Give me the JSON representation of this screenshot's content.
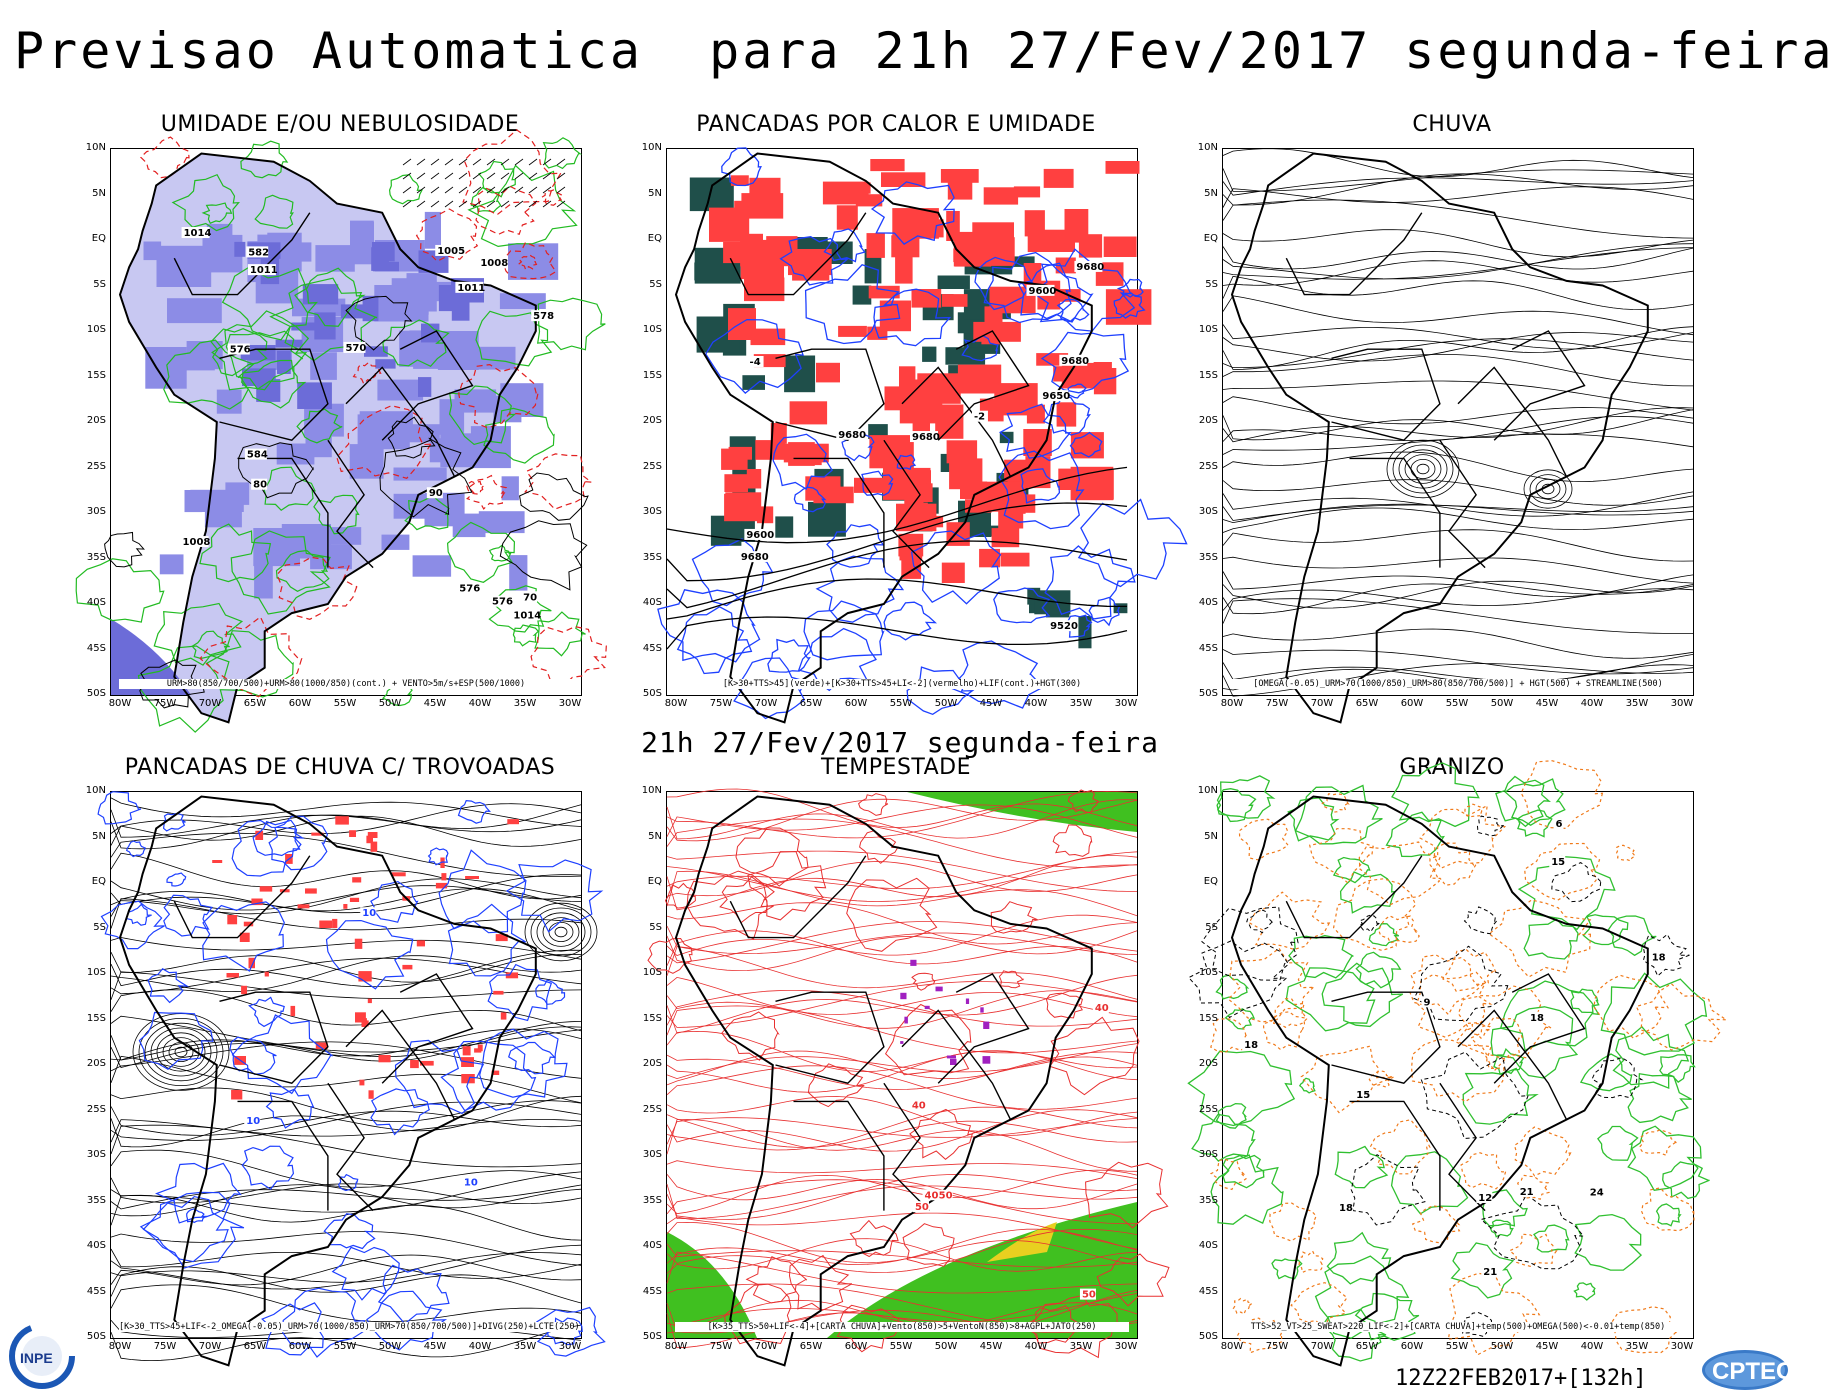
{
  "header": {
    "title": "Previsao Automatica  para 21h 27/Fev/2017 segunda-feira",
    "mid_title": "21h 27/Fev/2017 segunda-feira",
    "run_code": "12Z22FEB2017+[132h]"
  },
  "axes": {
    "lat_labels": [
      "10N",
      "5N",
      "EQ",
      "5S",
      "10S",
      "15S",
      "20S",
      "25S",
      "30S",
      "35S",
      "40S",
      "45S",
      "50S"
    ],
    "lon_labels": [
      "80W",
      "75W",
      "70W",
      "65W",
      "60W",
      "55W",
      "50W",
      "45W",
      "40W",
      "35W",
      "30W"
    ]
  },
  "panels": [
    {
      "id": "umidade",
      "title": "UMIDADE E/OU NEBULOSIDADE",
      "caption": "URM>80(850/700/500)+URM>80(1000/850)(cont.) + VENTO>5m/s+ESP(500/1000)",
      "style": "humidity",
      "contour_labels": [
        "1011",
        "578",
        "576",
        "80",
        "90",
        "70",
        "1008",
        "1011",
        "576",
        "582",
        "570",
        "1005",
        "1014",
        "576",
        "1014",
        "1008",
        "584"
      ]
    },
    {
      "id": "pancadas-calor",
      "title": "PANCADAS POR CALOR E UMIDADE",
      "caption": "[K>30+TTS>45](verde)+[K>30+TTS>45+LI<-2](vermelho)+LIF(cont.)+HGT(300)",
      "style": "heat",
      "contour_labels": [
        "9680",
        "-2",
        "-4",
        "9680",
        "9680",
        "9680",
        "9650",
        "9600",
        "9680",
        "9600",
        "9520"
      ]
    },
    {
      "id": "chuva",
      "title": "CHUVA",
      "caption": "[OMEGA(-0.05)_URM>70(1000/850)_URM>80(850/700/500)] + HGT(500) + STREAMLINE(500)",
      "style": "streamline",
      "contour_labels": []
    },
    {
      "id": "trovoadas",
      "title": "PANCADAS DE CHUVA C/ TROVOADAS",
      "caption": "[K>30_TTS>45+LIF<-2_OMEGA(-0.05)_URM>70(1000/850)_URM>70(850/700/500)]+DIVG(250)+LCTE(250)",
      "style": "storm",
      "contour_labels": [
        "10",
        "10",
        "10"
      ]
    },
    {
      "id": "tempestade",
      "title": "TEMPESTADE",
      "caption": "[K>35_TTS>50+LIF<-4]+[CARTA CHUVA]+Vento(850)>5+VentoN(850)>8+AGPL+JATO(250)",
      "style": "tempest",
      "contour_labels": [
        "50",
        "40",
        "50",
        "40",
        "50",
        "40"
      ]
    },
    {
      "id": "granizo",
      "title": "GRANIZO",
      "caption": "TTS>52_VT>25_SWEAT>220_LIF<-2]+[CARTA CHUVA]+temp(500)+OMEGA(500)<-0.01+temp(850)",
      "style": "hail",
      "contour_labels": [
        "18",
        "15",
        "18",
        "21",
        "15",
        "18",
        "12",
        "9",
        "6",
        "18",
        "21",
        "24"
      ]
    }
  ],
  "colors": {
    "humidity_fill": "#8c8ce6",
    "humidity_fill_light": "#c8c8f2",
    "green_contour": "#22bb22",
    "red_dash": "#e22020",
    "heat_red": "#ff4040",
    "heat_green": "#1f4f4a",
    "blue_contour": "#1e40ff",
    "tempest_red": "#e83030",
    "tempest_green": "#40c020",
    "tempest_yellow": "#e8d020",
    "hail_orange": "#f07a1a",
    "hail_green": "#30c030"
  },
  "logos": {
    "left": "INPE",
    "right": "CPTEC"
  }
}
